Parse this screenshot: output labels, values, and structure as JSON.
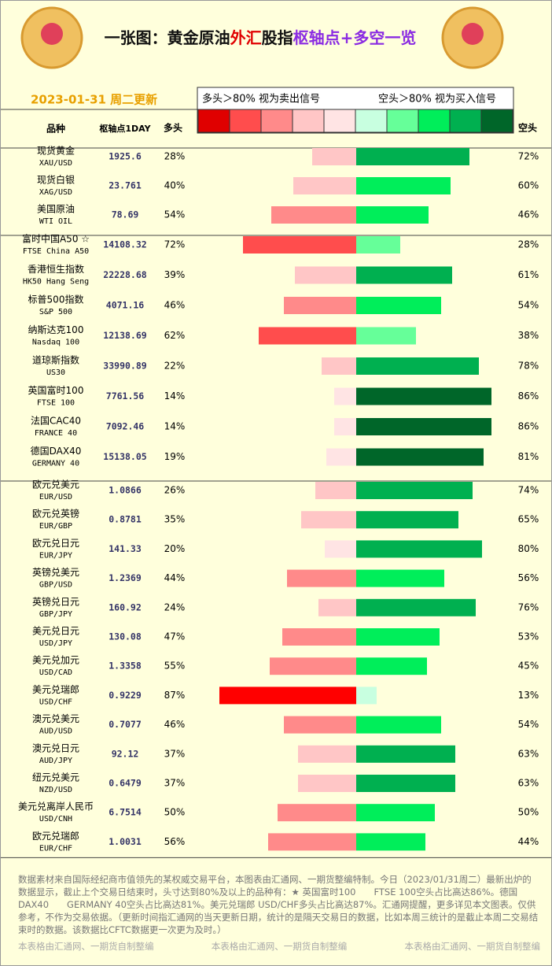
{
  "header": {
    "title_parts": [
      {
        "text": "一张图：黄金原油",
        "color": "#111"
      },
      {
        "text": "外汇",
        "color": "#e00000"
      },
      {
        "text": "股指",
        "color": "#111"
      },
      {
        "text": "枢轴点+多空一览",
        "color": "#8a2be2"
      }
    ],
    "date": "2023-01-31 周二更新",
    "legend": {
      "left": "多头＞80% 视为卖出信号",
      "right": "空头＞80% 视为买入信号",
      "colors": [
        "#e00000",
        "#ff4d4d",
        "#ff8a8a",
        "#ffc6c6",
        "#ffe4e4",
        "#c8ffe0",
        "#66ff99",
        "#00ee5a",
        "#00b050",
        "#006629"
      ]
    },
    "columns": {
      "name": "品种",
      "pivot": "枢轴点1DAY",
      "long": "多头",
      "short": "空头"
    }
  },
  "groups": [
    {
      "rows": [
        {
          "name": "现货黄金",
          "code": "XAU/USD",
          "pivot": "1925.6",
          "long": 28,
          "long_label": "28%",
          "long_color": "#ffc6c6",
          "short": 72,
          "short_label": "72%",
          "short_color": "#00b050"
        },
        {
          "name": "现货白银",
          "code": "XAG/USD",
          "pivot": "23.761",
          "long": 40,
          "long_label": "40%",
          "long_color": "#ffc6c6",
          "short": 60,
          "short_label": "60%",
          "short_color": "#00ee5a"
        },
        {
          "name": "美国原油",
          "code": "WTI OIL",
          "pivot": "78.69",
          "long": 54,
          "long_label": "54%",
          "long_color": "#ff8a8a",
          "short": 46,
          "short_label": "46%",
          "short_color": "#00ee5a"
        }
      ]
    },
    {
      "rows": [
        {
          "name": "富时中国A50 ☆",
          "code": "FTSE China A50",
          "pivot": "14108.32",
          "long": 72,
          "long_label": "72%",
          "long_color": "#ff4d4d",
          "short": 28,
          "short_label": "28%",
          "short_color": "#66ff99"
        },
        {
          "name": "香港恒生指数",
          "code": "HK50 Hang Seng",
          "pivot": "22228.68",
          "long": 39,
          "long_label": "39%",
          "long_color": "#ffc6c6",
          "short": 61,
          "short_label": "61%",
          "short_color": "#00b050"
        },
        {
          "name": "标普500指数",
          "code": "S&P 500",
          "pivot": "4071.16",
          "long": 46,
          "long_label": "46%",
          "long_color": "#ff8a8a",
          "short": 54,
          "short_label": "54%",
          "short_color": "#00ee5a"
        },
        {
          "name": "纳斯达克100",
          "code": "Nasdaq 100",
          "pivot": "12138.69",
          "long": 62,
          "long_label": "62%",
          "long_color": "#ff4d4d",
          "short": 38,
          "short_label": "38%",
          "short_color": "#66ff99"
        },
        {
          "name": "道琼斯指数",
          "code": "US30",
          "pivot": "33990.89",
          "long": 22,
          "long_label": "22%",
          "long_color": "#ffc6c6",
          "short": 78,
          "short_label": "78%",
          "short_color": "#00b050"
        },
        {
          "name": "英国富时100",
          "code": "FTSE 100",
          "pivot": "7761.56",
          "long": 14,
          "long_label": "14%",
          "long_color": "#ffe4e4",
          "short": 86,
          "short_label": "86%",
          "short_color": "#006629"
        },
        {
          "name": "法国CAC40",
          "code": "FRANCE 40",
          "pivot": "7092.46",
          "long": 14,
          "long_label": "14%",
          "long_color": "#ffe4e4",
          "short": 86,
          "short_label": "86%",
          "short_color": "#006629"
        },
        {
          "name": "德国DAX40",
          "code": "GERMANY 40",
          "pivot": "15138.05",
          "long": 19,
          "long_label": "19%",
          "long_color": "#ffe4e4",
          "short": 81,
          "short_label": "81%",
          "short_color": "#006629"
        }
      ]
    },
    {
      "rows": [
        {
          "name": "欧元兑美元",
          "code": "EUR/USD",
          "pivot": "1.0866",
          "long": 26,
          "long_label": "26%",
          "long_color": "#ffc6c6",
          "short": 74,
          "short_label": "74%",
          "short_color": "#00b050"
        },
        {
          "name": "欧元兑英镑",
          "code": "EUR/GBP",
          "pivot": "0.8781",
          "long": 35,
          "long_label": "35%",
          "long_color": "#ffc6c6",
          "short": 65,
          "short_label": "65%",
          "short_color": "#00b050"
        },
        {
          "name": "欧元兑日元",
          "code": "EUR/JPY",
          "pivot": "141.33",
          "long": 20,
          "long_label": "20%",
          "long_color": "#ffe4e4",
          "short": 80,
          "short_label": "80%",
          "short_color": "#00b050"
        },
        {
          "name": "英镑兑美元",
          "code": "GBP/USD",
          "pivot": "1.2369",
          "long": 44,
          "long_label": "44%",
          "long_color": "#ff8a8a",
          "short": 56,
          "short_label": "56%",
          "short_color": "#00ee5a"
        },
        {
          "name": "英镑兑日元",
          "code": "GBP/JPY",
          "pivot": "160.92",
          "long": 24,
          "long_label": "24%",
          "long_color": "#ffc6c6",
          "short": 76,
          "short_label": "76%",
          "short_color": "#00b050"
        },
        {
          "name": "美元兑日元",
          "code": "USD/JPY",
          "pivot": "130.08",
          "long": 47,
          "long_label": "47%",
          "long_color": "#ff8a8a",
          "short": 53,
          "short_label": "53%",
          "short_color": "#00ee5a"
        },
        {
          "name": "美元兑加元",
          "code": "USD/CAD",
          "pivot": "1.3358",
          "long": 55,
          "long_label": "55%",
          "long_color": "#ff8a8a",
          "short": 45,
          "short_label": "45%",
          "short_color": "#00ee5a"
        },
        {
          "name": "美元兑瑞郎",
          "code": "USD/CHF",
          "pivot": "0.9229",
          "long": 87,
          "long_label": "87%",
          "long_color": "#ff0000",
          "short": 13,
          "short_label": "13%",
          "short_color": "#c8ffe0"
        },
        {
          "name": "澳元兑美元",
          "code": "AUD/USD",
          "pivot": "0.7077",
          "long": 46,
          "long_label": "46%",
          "long_color": "#ff8a8a",
          "short": 54,
          "short_label": "54%",
          "short_color": "#00ee5a"
        },
        {
          "name": "澳元兑日元",
          "code": "AUD/JPY",
          "pivot": "92.12",
          "long": 37,
          "long_label": "37%",
          "long_color": "#ffc6c6",
          "short": 63,
          "short_label": "63%",
          "short_color": "#00b050"
        },
        {
          "name": "纽元兑美元",
          "code": "NZD/USD",
          "pivot": "0.6479",
          "long": 37,
          "long_label": "37%",
          "long_color": "#ffc6c6",
          "short": 63,
          "short_label": "63%",
          "short_color": "#00b050"
        },
        {
          "name": "美元兑离岸人民币",
          "code": "USD/CNH",
          "pivot": "6.7514",
          "long": 50,
          "long_label": "50%",
          "long_color": "#ff8a8a",
          "short": 50,
          "short_label": "50%",
          "short_color": "#00ee5a"
        },
        {
          "name": "欧元兑瑞郎",
          "code": "EUR/CHF",
          "pivot": "1.0031",
          "long": 56,
          "long_label": "56%",
          "long_color": "#ff8a8a",
          "short": 44,
          "short_label": "44%",
          "short_color": "#00ee5a"
        }
      ]
    }
  ],
  "footer": {
    "note": "数据素材来自国际经纪商市值领先的某权威交易平台，本图表由汇通网、一期货整编特制。今日（2023/01/31周二）最新出炉的数据显示，截止上个交易日结束时，头寸达到80%及以上的品种有：★ 英国富时100　　FTSE 100空头占比高达86%。德国DAX40　　GERMANY 40空头占比高达81%。美元兑瑞郎 USD/CHF多头占比高达87%。汇通网提醒，更多详见本文图表。仅供参考，不作为交易依据。（更新时间指汇通网的当天更新日期，统计的是隔天交易日的数据，比如本周三统计的是截止本周二交易结束时的数据。该数据比CFTC数据更一次更为及时。）",
    "credits": [
      "本表格由汇通网、一期货自制整编",
      "本表格由汇通网、一期货自制整编",
      "本表格由汇通网、一期货自制整编"
    ]
  }
}
